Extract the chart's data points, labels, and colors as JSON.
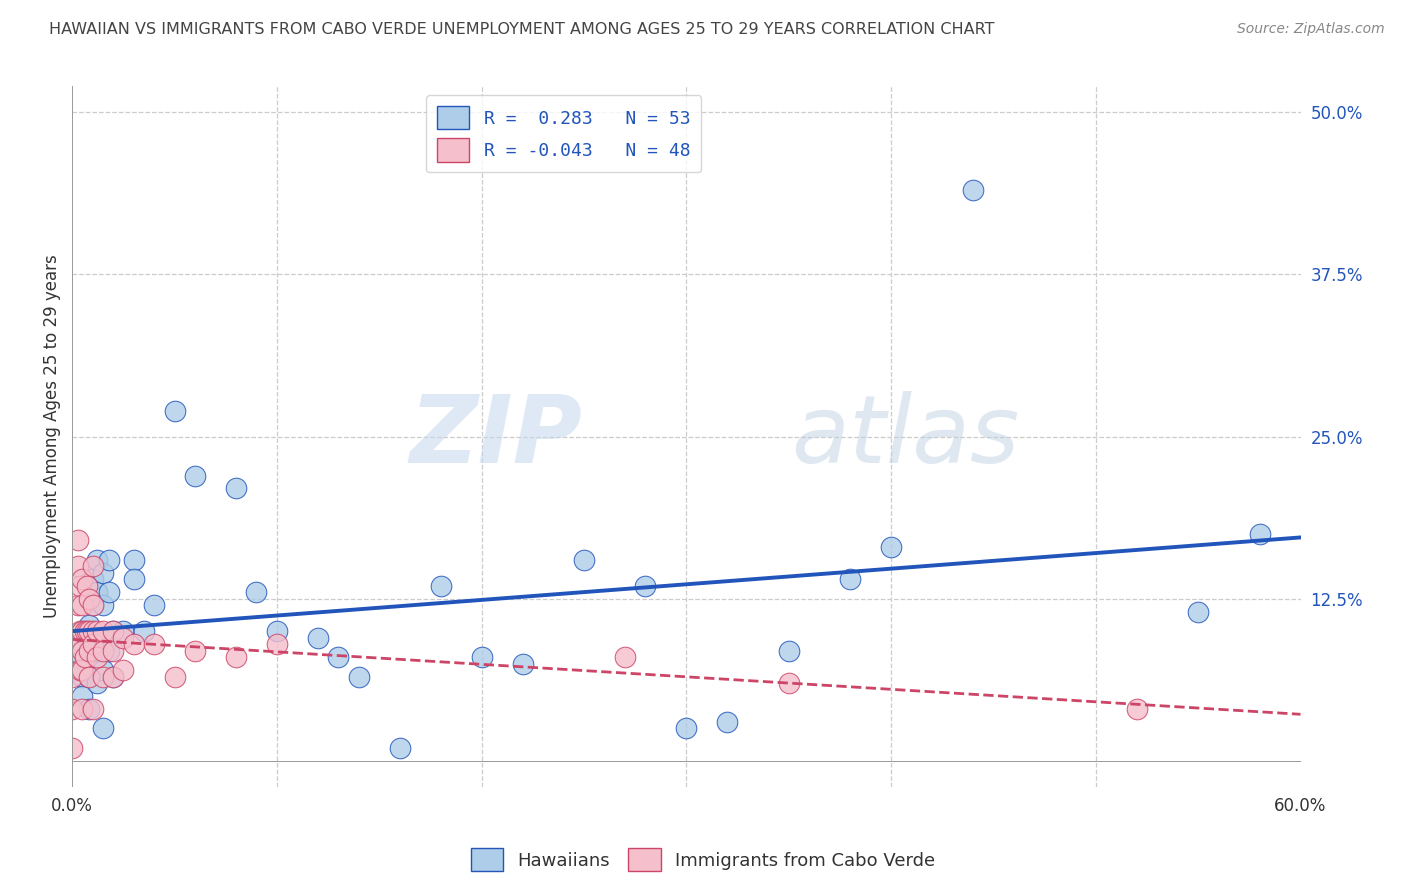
{
  "title": "HAWAIIAN VS IMMIGRANTS FROM CABO VERDE UNEMPLOYMENT AMONG AGES 25 TO 29 YEARS CORRELATION CHART",
  "source": "Source: ZipAtlas.com",
  "ylabel": "Unemployment Among Ages 25 to 29 years",
  "xlim": [
    0,
    0.6
  ],
  "ylim": [
    -0.02,
    0.52
  ],
  "yticks_right": [
    0.125,
    0.25,
    0.375,
    0.5
  ],
  "ytick_right_labels": [
    "12.5%",
    "25.0%",
    "37.5%",
    "50.0%"
  ],
  "legend_R_blue": "0.283",
  "legend_N_blue": "53",
  "legend_R_pink": "-0.043",
  "legend_N_pink": "48",
  "blue_color": "#aecde8",
  "blue_line_color": "#2255bb",
  "pink_color": "#f5bfcc",
  "pink_line_color": "#cc4466",
  "background_color": "#ffffff",
  "watermark_zip": "ZIP",
  "watermark_atlas": "atlas",
  "hawaiians_x": [
    0.005,
    0.005,
    0.005,
    0.005,
    0.005,
    0.008,
    0.008,
    0.008,
    0.008,
    0.01,
    0.01,
    0.01,
    0.012,
    0.012,
    0.012,
    0.012,
    0.015,
    0.015,
    0.015,
    0.015,
    0.015,
    0.018,
    0.018,
    0.018,
    0.02,
    0.02,
    0.025,
    0.03,
    0.03,
    0.035,
    0.04,
    0.05,
    0.06,
    0.08,
    0.09,
    0.1,
    0.12,
    0.13,
    0.14,
    0.16,
    0.18,
    0.2,
    0.22,
    0.25,
    0.28,
    0.3,
    0.32,
    0.35,
    0.38,
    0.4,
    0.44,
    0.55,
    0.58
  ],
  "hawaiians_y": [
    0.08,
    0.09,
    0.1,
    0.065,
    0.05,
    0.105,
    0.09,
    0.065,
    0.04,
    0.14,
    0.12,
    0.085,
    0.155,
    0.13,
    0.09,
    0.06,
    0.145,
    0.12,
    0.095,
    0.07,
    0.025,
    0.155,
    0.13,
    0.085,
    0.1,
    0.065,
    0.1,
    0.155,
    0.14,
    0.1,
    0.12,
    0.27,
    0.22,
    0.21,
    0.13,
    0.1,
    0.095,
    0.08,
    0.065,
    0.01,
    0.135,
    0.08,
    0.075,
    0.155,
    0.135,
    0.025,
    0.03,
    0.085,
    0.14,
    0.165,
    0.44,
    0.115,
    0.175
  ],
  "caboverde_x": [
    0.0,
    0.0,
    0.0,
    0.003,
    0.003,
    0.003,
    0.003,
    0.004,
    0.004,
    0.004,
    0.005,
    0.005,
    0.005,
    0.005,
    0.005,
    0.005,
    0.006,
    0.006,
    0.007,
    0.007,
    0.008,
    0.008,
    0.008,
    0.008,
    0.01,
    0.01,
    0.01,
    0.01,
    0.01,
    0.012,
    0.012,
    0.015,
    0.015,
    0.015,
    0.02,
    0.02,
    0.02,
    0.025,
    0.025,
    0.03,
    0.04,
    0.05,
    0.06,
    0.08,
    0.1,
    0.27,
    0.35,
    0.52
  ],
  "caboverde_y": [
    0.065,
    0.04,
    0.01,
    0.17,
    0.15,
    0.12,
    0.09,
    0.135,
    0.1,
    0.07,
    0.14,
    0.12,
    0.1,
    0.085,
    0.07,
    0.04,
    0.1,
    0.08,
    0.135,
    0.1,
    0.125,
    0.1,
    0.085,
    0.065,
    0.15,
    0.12,
    0.1,
    0.09,
    0.04,
    0.1,
    0.08,
    0.1,
    0.085,
    0.065,
    0.1,
    0.085,
    0.065,
    0.095,
    0.07,
    0.09,
    0.09,
    0.065,
    0.085,
    0.08,
    0.09,
    0.08,
    0.06,
    0.04
  ]
}
